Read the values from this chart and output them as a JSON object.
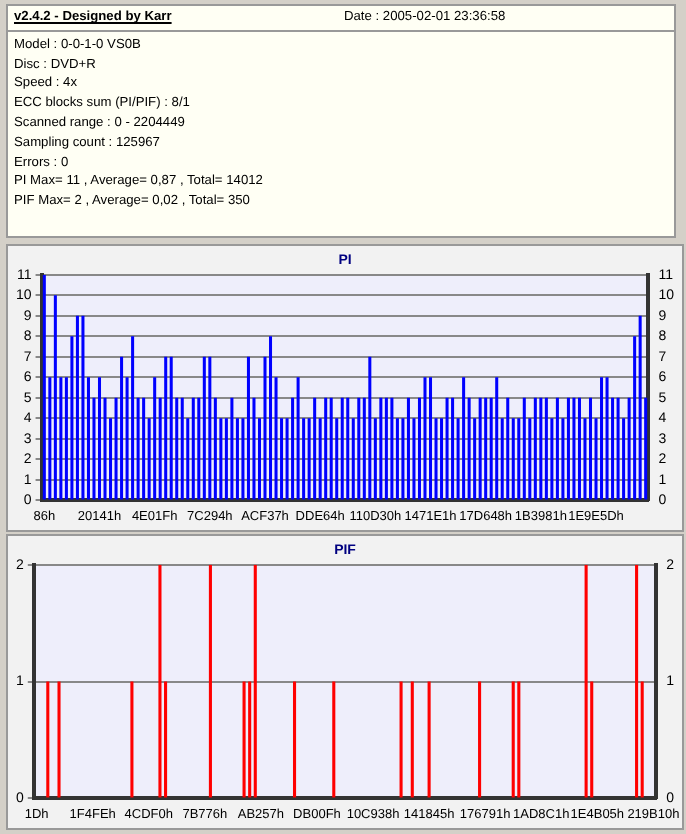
{
  "chart_data": [
    {
      "type": "bar",
      "title": "PI",
      "annotations": [
        "v2.4.2 - Designed by Karr",
        "Date : 2005-02-01 23:36:58",
        "Model : 0-0-1-0  VS0B",
        "Disc : DVD+R",
        "Speed : 4x",
        "ECC blocks sum (PI/PIF) : 8/1",
        "Scanned range : 0 - 2204449",
        "Sampling count : 125967",
        "Errors : 0",
        "PI Max= 11 , Average= 0,87 , Total= 14012",
        "PIF Max= 2 , Average= 0,02 , Total= 350"
      ],
      "categories": [
        "86h",
        null,
        null,
        null,
        null,
        null,
        null,
        null,
        null,
        null,
        "20141h",
        null,
        null,
        null,
        null,
        null,
        null,
        null,
        null,
        null,
        "4E01Fh",
        null,
        null,
        null,
        null,
        null,
        null,
        null,
        null,
        null,
        "7C294h",
        null,
        null,
        null,
        null,
        null,
        null,
        null,
        null,
        null,
        "ACF37h",
        null,
        null,
        null,
        null,
        null,
        null,
        null,
        null,
        null,
        "DDE64h",
        null,
        null,
        null,
        null,
        null,
        null,
        null,
        null,
        null,
        "110D30h",
        null,
        null,
        null,
        null,
        null,
        null,
        null,
        null,
        null,
        "1471E1h",
        null,
        null,
        null,
        null,
        null,
        null,
        null,
        null,
        null,
        "17D648h",
        null,
        null,
        null,
        null,
        null,
        null,
        null,
        null,
        null,
        "1B3981h",
        null,
        null,
        null,
        null,
        null,
        null,
        null,
        null,
        null,
        "1E9E5Dh",
        null,
        null,
        null,
        null,
        null,
        null,
        null,
        null,
        null
      ],
      "series": [
        {
          "color": "#0000ff",
          "values": [
            11,
            6,
            10,
            6,
            6,
            8,
            9,
            9,
            6,
            5,
            6,
            5,
            4,
            5,
            7,
            6,
            8,
            5,
            5,
            4,
            6,
            5,
            7,
            7,
            5,
            5,
            4,
            5,
            5,
            7,
            7,
            5,
            4,
            4,
            5,
            4,
            4,
            7,
            5,
            4,
            7,
            8,
            6,
            4,
            4,
            5,
            6,
            4,
            4,
            5,
            4,
            5,
            5,
            4,
            5,
            5,
            4,
            5,
            5,
            7,
            4,
            5,
            5,
            5,
            4,
            4,
            5,
            4,
            5,
            6,
            6,
            4,
            4,
            5,
            5,
            4,
            6,
            5,
            4,
            5,
            5,
            5,
            6,
            4,
            5,
            4,
            4,
            5,
            4,
            5,
            5,
            5,
            4,
            5,
            4,
            5,
            5,
            5,
            4,
            5,
            4,
            6,
            6,
            5,
            5,
            4,
            5,
            8,
            9,
            5
          ]
        }
      ],
      "ylim": [
        0,
        11
      ],
      "yticks": [
        0,
        1,
        2,
        3,
        4,
        5,
        6,
        7,
        8,
        9,
        10,
        11
      ],
      "y2lim": [
        0,
        11
      ],
      "y2ticks": [
        0,
        1,
        2,
        3,
        4,
        5,
        6,
        7,
        8,
        9,
        10,
        11
      ],
      "grid": "y"
    },
    {
      "type": "bar",
      "title": "PIF",
      "categories": [
        "1Dh",
        null,
        null,
        null,
        null,
        null,
        null,
        null,
        null,
        null,
        "1F4FEh",
        null,
        null,
        null,
        null,
        null,
        null,
        null,
        null,
        null,
        "4CDF0h",
        null,
        null,
        null,
        null,
        null,
        null,
        null,
        null,
        null,
        "7B776h",
        null,
        null,
        null,
        null,
        null,
        null,
        null,
        null,
        null,
        "AB257h",
        null,
        null,
        null,
        null,
        null,
        null,
        null,
        null,
        null,
        "DB00Fh",
        null,
        null,
        null,
        null,
        null,
        null,
        null,
        null,
        null,
        "10C938h",
        null,
        null,
        null,
        null,
        null,
        null,
        null,
        null,
        null,
        "141845h",
        null,
        null,
        null,
        null,
        null,
        null,
        null,
        null,
        null,
        "176791h",
        null,
        null,
        null,
        null,
        null,
        null,
        null,
        null,
        null,
        "1AD8C1h",
        null,
        null,
        null,
        null,
        null,
        null,
        null,
        null,
        null,
        "1E4B05h",
        null,
        null,
        null,
        null,
        null,
        null,
        null,
        null,
        null,
        "219B10h"
      ],
      "series": [
        {
          "color": "#ff0000",
          "values": [
            0,
            0,
            1,
            0,
            1,
            0,
            0,
            0,
            0,
            0,
            0,
            0,
            0,
            0,
            0,
            0,
            0,
            1,
            0,
            0,
            0,
            0,
            2,
            1,
            0,
            0,
            0,
            0,
            0,
            0,
            0,
            2,
            0,
            0,
            0,
            0,
            0,
            1,
            1,
            2,
            0,
            0,
            0,
            0,
            0,
            0,
            1,
            0,
            0,
            0,
            0,
            0,
            0,
            1,
            0,
            0,
            0,
            0,
            0,
            0,
            0,
            0,
            0,
            0,
            0,
            1,
            0,
            1,
            0,
            0,
            1,
            0,
            0,
            0,
            0,
            0,
            0,
            0,
            0,
            1,
            0,
            0,
            0,
            0,
            0,
            1,
            1,
            0,
            0,
            0,
            0,
            0,
            0,
            0,
            0,
            0,
            0,
            0,
            2,
            1,
            0,
            0,
            0,
            0,
            0,
            0,
            0,
            2,
            1,
            0,
            0
          ]
        }
      ],
      "ylim": [
        0,
        2
      ],
      "yticks": [
        0,
        1,
        2
      ],
      "y2lim": [
        0,
        2
      ],
      "y2ticks": [
        0,
        1,
        2
      ],
      "grid": "y"
    }
  ]
}
